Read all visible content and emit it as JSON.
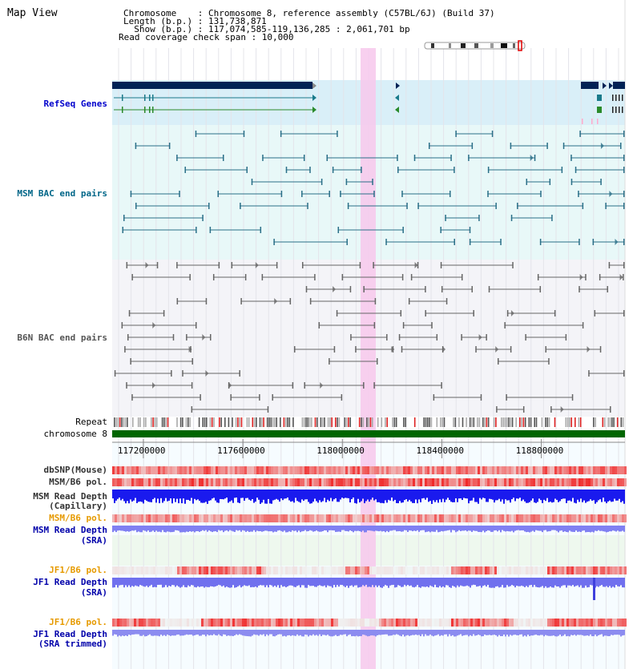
{
  "header": {
    "title": "Map View",
    "info_lines": [
      "Chromosome    : Chromosome 8, reference assembly (C57BL/6J) (Build 37)",
      "Length (b.p.) : 131,738,871",
      "  Show (b.p.) : 117,074,585-119,136,285 : 2,061,701 bp",
      "Read coverage check span : 10,000"
    ]
  },
  "tracks": {
    "refseq": "RefSeq Genes",
    "msm_bac": "MSM BAC end pairs",
    "b6n_bac": "B6N BAC end pairs",
    "repeat": "Repeat",
    "chromosome": "chromosome 8",
    "dbsnp": "dbSNP(Mouse)",
    "msm_b6_pol": "MSM/B6 pol.",
    "msm_depth_cap_1": "MSM Read Depth",
    "msm_depth_cap_2": "(Capillary)",
    "msm_b6_pol_sra": "MSM/B6 pol.",
    "msm_depth_sra_1": "MSM Read Depth",
    "msm_depth_sra_2": "(SRA)",
    "jf1_b6_pol": "JF1/B6 pol.",
    "jf1_depth_1": "JF1 Read Depth",
    "jf1_depth_2": "(SRA)",
    "jf1_b6_pol_trim": "JF1/B6 pol.",
    "jf1_depth_trim_1": "JF1 Read Depth",
    "jf1_depth_trim_2": "(SRA trimmed)"
  },
  "axis": {
    "ticks": [
      "117200000",
      "117600000",
      "118000000",
      "118400000",
      "118800000"
    ],
    "range_start": 117074585,
    "range_end": 119136285
  },
  "colors": {
    "refseq_label": "#0000cc",
    "msm_label": "#006688",
    "b6n_label": "#555555",
    "pol_orange": "#e69a00",
    "depth_blue": "#0000aa",
    "gene_navy": "#002255",
    "gene_teal": "#1a7a8a",
    "gene_green": "#2a8a2a",
    "msm_line": "#2a6f88",
    "b6n_line": "#666666",
    "highlight": "#f7c8ec",
    "chromosome_bar": "#006600"
  }
}
